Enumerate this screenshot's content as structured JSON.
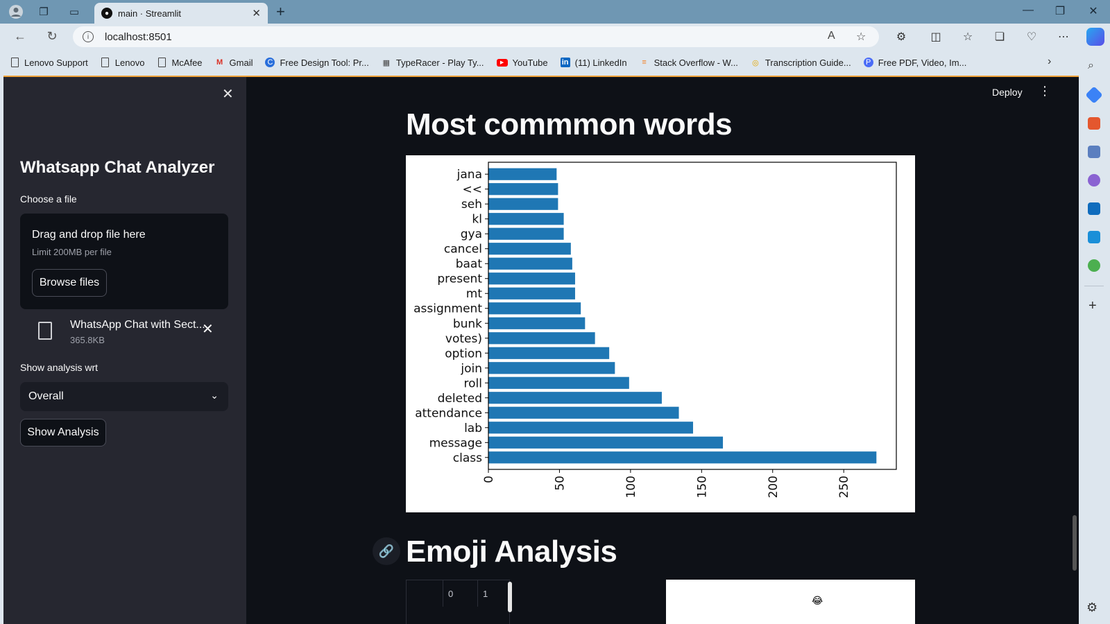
{
  "browser": {
    "tab_title": "main · Streamlit",
    "url": "localhost:8501",
    "bookmarks": [
      {
        "label": "Lenovo Support",
        "icon": "page-icon"
      },
      {
        "label": "Lenovo",
        "icon": "page-icon"
      },
      {
        "label": "McAfee",
        "icon": "page-icon"
      },
      {
        "label": "Gmail",
        "icon": "gmail-icon"
      },
      {
        "label": "Free Design Tool: Pr...",
        "icon": "canva-icon"
      },
      {
        "label": "TypeRacer - Play Ty...",
        "icon": "typeracer-icon"
      },
      {
        "label": "YouTube",
        "icon": "youtube-icon"
      },
      {
        "label": "(11) LinkedIn",
        "icon": "linkedin-icon"
      },
      {
        "label": "Stack Overflow - W...",
        "icon": "stackoverflow-icon"
      },
      {
        "label": "Transcription Guide...",
        "icon": "transcription-icon"
      },
      {
        "label": "Free PDF, Video, Im...",
        "icon": "pdf-icon"
      }
    ]
  },
  "sidebar": {
    "title": "Whatsapp Chat Analyzer",
    "file_label": "Choose a file",
    "dropzone_title": "Drag and drop file here",
    "dropzone_limit": "Limit 200MB per file",
    "browse_label": "Browse files",
    "file_name": "WhatsApp Chat with Sect...",
    "file_size": "365.8KB",
    "analysis_label": "Show analysis wrt",
    "analysis_value": "Overall",
    "show_button": "Show Analysis"
  },
  "header": {
    "deploy": "Deploy"
  },
  "main": {
    "common_words_title": "Most commmon words",
    "emoji_title": "Emoji Analysis",
    "df_columns": [
      "0",
      "1"
    ]
  },
  "chart_data": {
    "type": "bar",
    "orientation": "horizontal",
    "color": "#1f77b4",
    "categories": [
      "class",
      "message",
      "lab",
      "attendance",
      "deleted",
      "roll",
      "join",
      "option",
      "votes)",
      "bunk",
      "assignment",
      "mt",
      "present",
      "baat",
      "cancel",
      "gya",
      "kl",
      "seh",
      "<<",
      "jana"
    ],
    "values": [
      273,
      165,
      144,
      134,
      122,
      99,
      89,
      85,
      75,
      68,
      65,
      61,
      61,
      59,
      58,
      53,
      53,
      49,
      49,
      48
    ],
    "xlim": [
      0,
      287
    ],
    "xticks": [
      0,
      50,
      100,
      150,
      200,
      250
    ],
    "title": "",
    "xlabel": "",
    "ylabel": "",
    "grid": false
  }
}
